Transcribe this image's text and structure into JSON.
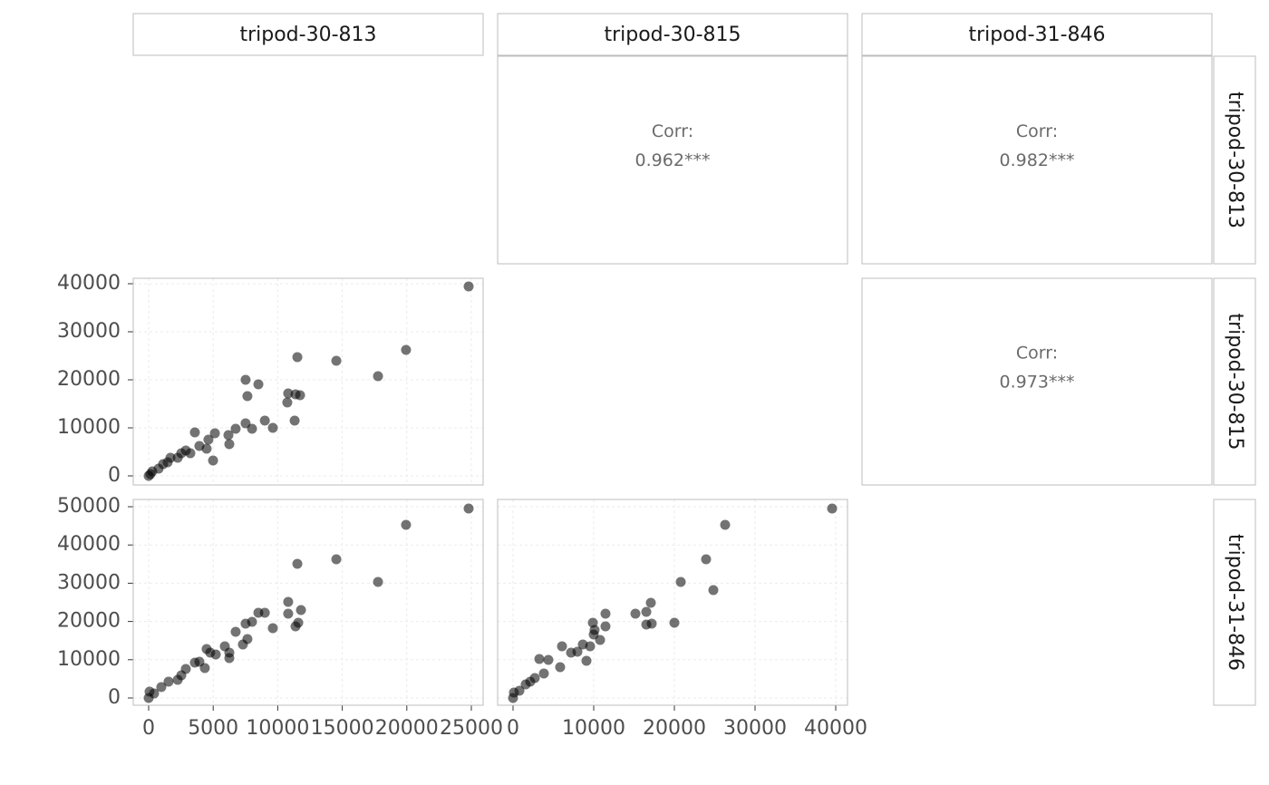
{
  "columns": [
    "tripod-30-813",
    "tripod-30-815",
    "tripod-31-846"
  ],
  "rows": [
    "tripod-30-813",
    "tripod-30-815",
    "tripod-31-846"
  ],
  "correlations": [
    {
      "label": "Corr:",
      "value": "0.962***"
    },
    {
      "label": "Corr:",
      "value": "0.982***"
    },
    {
      "label": "Corr:",
      "value": "0.973***"
    }
  ],
  "chart_data": [
    {
      "type": "scatter",
      "color": "#000000",
      "xlim": [
        -1194,
        25913
      ],
      "xticks": [
        0,
        5000,
        10000,
        15000,
        20000,
        25000
      ],
      "ylim": [
        -1890,
        41130
      ],
      "yticks": [
        0,
        10000,
        20000,
        30000,
        40000
      ],
      "x": [
        24790,
        19940,
        17770,
        14540,
        11520,
        11380,
        11730,
        11310,
        10810,
        10740,
        8500,
        9000,
        9620,
        7510,
        7650,
        7510,
        8010,
        6740,
        6180,
        6250,
        5130,
        4990,
        3580,
        3930,
        4630,
        4490,
        2880,
        2250,
        1470,
        1690,
        770,
        280,
        0,
        140,
        2530,
        3230,
        1120
      ],
      "y": [
        39430,
        26230,
        20750,
        23960,
        24720,
        16980,
        16790,
        11510,
        17170,
        15280,
        19060,
        11510,
        10000,
        20000,
        16600,
        10940,
        9810,
        9810,
        8490,
        6600,
        8870,
        3210,
        9060,
        6230,
        7550,
        5660,
        5280,
        3770,
        2830,
        3770,
        1510,
        940,
        0,
        380,
        4720,
        4720,
        2450
      ]
    },
    {
      "type": "scatter",
      "color": "#000000",
      "xlim": [
        -1194,
        25913
      ],
      "xticks": [
        0,
        5000,
        10000,
        15000,
        20000,
        25000
      ],
      "ylim": [
        -1900,
        51900
      ],
      "yticks": [
        0,
        10000,
        20000,
        30000,
        40000,
        50000
      ],
      "x": [
        24790,
        19940,
        14540,
        17770,
        11520,
        10810,
        10810,
        11800,
        11380,
        11590,
        9620,
        8500,
        9000,
        8010,
        7510,
        7650,
        7300,
        6740,
        5900,
        6250,
        6250,
        4490,
        4770,
        4350,
        5200,
        3580,
        2880,
        2250,
        1540,
        980,
        420,
        0,
        70,
        2530,
        3930
      ],
      "y": [
        49530,
        45260,
        36260,
        30330,
        35070,
        25120,
        22040,
        22990,
        18720,
        19670,
        18250,
        22270,
        22270,
        19910,
        19430,
        15400,
        13980,
        17300,
        13510,
        11850,
        10430,
        12800,
        11850,
        7820,
        11370,
        9240,
        7580,
        4740,
        4270,
        2840,
        1180,
        0,
        1660,
        5920,
        9480
      ]
    },
    {
      "type": "scatter",
      "color": "#000000",
      "xlim": [
        -1910,
        41460
      ],
      "xticks": [
        0,
        10000,
        20000,
        30000,
        40000
      ],
      "ylim": [
        -1900,
        51900
      ],
      "yticks": [
        0,
        10000,
        20000,
        30000,
        40000,
        50000
      ],
      "x": [
        39550,
        26290,
        23930,
        20790,
        24830,
        20000,
        17080,
        17190,
        16520,
        16520,
        15170,
        11460,
        11460,
        10790,
        9890,
        10110,
        10000,
        9550,
        9100,
        8650,
        6070,
        7190,
        7980,
        5840,
        3260,
        4380,
        3820,
        2700,
        1570,
        790,
        0,
        110,
        2130
      ],
      "y": [
        49530,
        45260,
        36260,
        30330,
        28200,
        19670,
        24880,
        19430,
        22510,
        19190,
        22040,
        22040,
        18720,
        15170,
        19670,
        17770,
        16590,
        13510,
        9720,
        13980,
        13510,
        11850,
        12090,
        8060,
        10190,
        9950,
        6400,
        5210,
        3550,
        1900,
        0,
        1420,
        4270
      ]
    }
  ]
}
